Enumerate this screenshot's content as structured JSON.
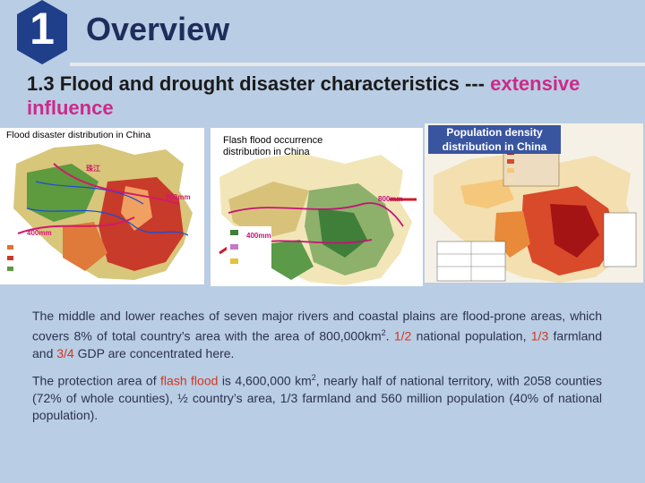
{
  "badge": {
    "number": "1"
  },
  "header": {
    "title": "Overview"
  },
  "subtitle": {
    "main": "1.3 Flood and drought disaster characteristics --- ",
    "highlight": "extensive influence"
  },
  "maps": {
    "flood": {
      "caption": "Flood disaster distribution in China",
      "labels": {
        "isoline_900": "900mm",
        "isoline_400": "400mm",
        "river": "珠江"
      }
    },
    "flash": {
      "caption_line1": "Flash flood occurrence",
      "caption_line2": "distribution in China",
      "labels": {
        "isoline_800": "800mm",
        "isoline_400": "400mm"
      }
    },
    "population": {
      "caption_line1": "Population density",
      "caption_line2": "distribution in China"
    }
  },
  "paragraph1": {
    "t1": "The middle and lower reaches of seven major rivers and coastal plains are flood-prone areas, which covers 8% of total country’s area with the area of 800,000km",
    "sup": "2",
    "t2": ". ",
    "frac1": "1/2",
    "t3": " national population, ",
    "frac2": "1/3",
    "t4": " farmland and ",
    "frac3": "3/4",
    "t5": " GDP are concentrated here."
  },
  "paragraph2": {
    "t1": "The protection area of ",
    "flash": "flash flood",
    "t2": " is 4,600,000 km",
    "sup": "2",
    "t3": ", nearly half of national territory, with 2058 counties (72% of whole counties), ½ country’s area, 1/3 farmland and 560 million population (40% of national population)."
  },
  "colors": {
    "background": "#b9cde4",
    "badge": "#1f3f8a",
    "accent": "#cc2a8a",
    "highlight": "#d4361f"
  }
}
